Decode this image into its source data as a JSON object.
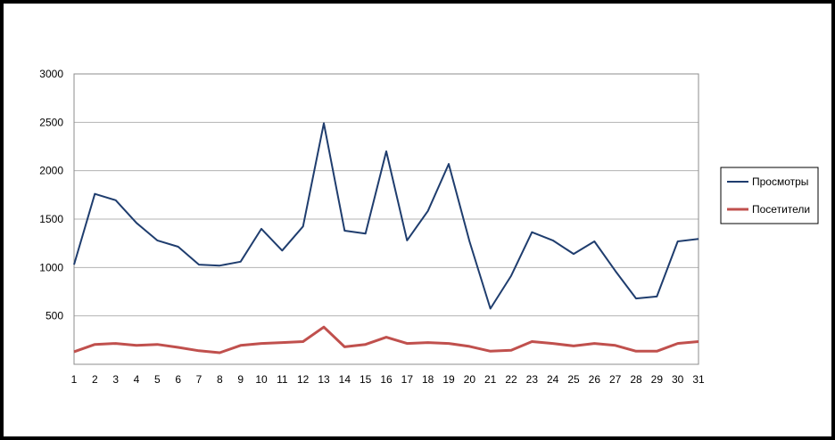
{
  "chart_data": {
    "type": "line",
    "title": "",
    "xlabel": "",
    "ylabel": "",
    "x": [
      1,
      2,
      3,
      4,
      5,
      6,
      7,
      8,
      9,
      10,
      11,
      12,
      13,
      14,
      15,
      16,
      17,
      18,
      19,
      20,
      21,
      22,
      23,
      24,
      25,
      26,
      27,
      28,
      29,
      30,
      31
    ],
    "ylim": [
      0,
      3000
    ],
    "yticks": [
      500,
      1000,
      1500,
      2000,
      2500,
      3000
    ],
    "grid": true,
    "legend_position": "right",
    "series": [
      {
        "name": "Просмотры",
        "color": "#1f3d6e",
        "values": [
          1030,
          1760,
          1695,
          1460,
          1280,
          1215,
          1030,
          1020,
          1060,
          1400,
          1175,
          1425,
          2490,
          1380,
          1350,
          2200,
          1280,
          1585,
          2070,
          1270,
          575,
          915,
          1365,
          1280,
          1140,
          1270,
          965,
          680,
          700,
          1270,
          1295
        ]
      },
      {
        "name": "Посетители",
        "color": "#c0504d",
        "values": [
          130,
          205,
          215,
          195,
          205,
          175,
          140,
          120,
          195,
          215,
          225,
          235,
          385,
          180,
          205,
          280,
          215,
          225,
          215,
          185,
          135,
          145,
          235,
          215,
          190,
          215,
          195,
          135,
          135,
          215,
          235
        ]
      }
    ]
  }
}
